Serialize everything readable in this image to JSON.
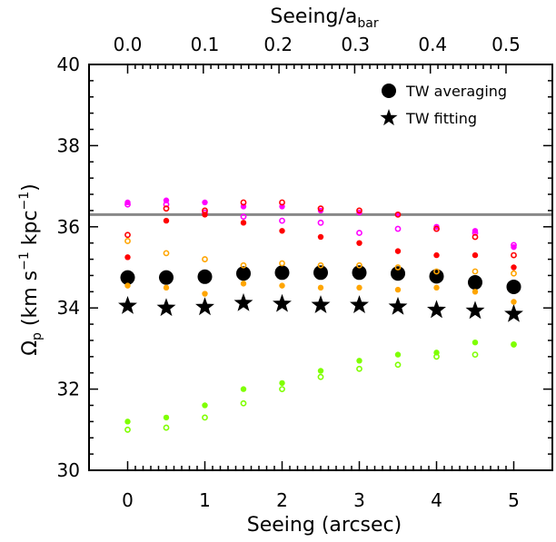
{
  "chart_data": {
    "type": "scatter",
    "xlabel": "Seeing (arcsec)",
    "ylabel": {
      "main": "Ω",
      "sub": "p",
      "rest1": " (km s",
      "sup1": "−1",
      "rest2": " kpc",
      "sup2": "−1",
      "rest3": ")"
    },
    "top_xlabel": {
      "main": "Seeing/a",
      "sub": "bar"
    },
    "xlim": [
      -0.5,
      5.5
    ],
    "ylim": [
      30,
      40
    ],
    "x_ticks": [
      "0",
      "1",
      "2",
      "3",
      "4",
      "5"
    ],
    "y_ticks": [
      "30",
      "32",
      "34",
      "36",
      "38",
      "40"
    ],
    "top_ticks": [
      "0.0",
      "0.1",
      "0.2",
      "0.3",
      "0.4",
      "0.5"
    ],
    "top_tick_positions_arcsec": [
      0,
      1.0,
      1.95,
      2.95,
      3.95,
      4.9
    ],
    "reference_line": {
      "y": 36.3,
      "color": "#888888"
    },
    "legend": {
      "placement": "top-right",
      "entries": [
        {
          "label": "TW averaging",
          "marker": "circle"
        },
        {
          "label": "TW fitting",
          "marker": "star"
        }
      ]
    },
    "x": [
      0,
      0.5,
      1,
      1.5,
      2,
      2.5,
      3,
      3.5,
      4,
      4.5,
      5
    ],
    "series": [
      {
        "marker": "big-circle",
        "color": "#000000",
        "values": [
          34.75,
          34.75,
          34.77,
          34.85,
          34.87,
          34.87,
          34.87,
          34.85,
          34.78,
          34.63,
          34.52
        ]
      },
      {
        "marker": "star",
        "color": "#000000",
        "values": [
          34.05,
          34.0,
          34.02,
          34.12,
          34.1,
          34.07,
          34.07,
          34.03,
          33.95,
          33.93,
          33.85
        ]
      },
      {
        "marker": "dot",
        "color": "#ff00ff",
        "values": [
          36.6,
          36.65,
          36.6,
          36.5,
          36.5,
          36.4,
          36.35,
          36.3,
          36.0,
          35.9,
          35.5
        ]
      },
      {
        "marker": "ring",
        "color": "#ff00ff",
        "values": [
          36.55,
          36.55,
          36.35,
          36.25,
          36.15,
          36.1,
          35.85,
          35.95,
          35.95,
          35.85,
          35.55
        ]
      },
      {
        "marker": "ring",
        "color": "#ff0000",
        "values": [
          35.8,
          36.45,
          36.4,
          36.6,
          36.6,
          36.45,
          36.4,
          36.3,
          35.95,
          35.75,
          35.3
        ]
      },
      {
        "marker": "dot",
        "color": "#ff0000",
        "values": [
          35.25,
          36.15,
          36.3,
          36.1,
          35.9,
          35.75,
          35.6,
          35.4,
          35.3,
          35.3,
          35.0
        ]
      },
      {
        "marker": "ring",
        "color": "#ffa500",
        "values": [
          35.65,
          35.35,
          35.2,
          35.05,
          35.1,
          35.05,
          35.05,
          35.0,
          34.9,
          34.9,
          34.85
        ]
      },
      {
        "marker": "dot",
        "color": "#ffa500",
        "values": [
          34.55,
          34.5,
          34.35,
          34.6,
          34.55,
          34.5,
          34.5,
          34.45,
          34.5,
          34.4,
          34.15
        ]
      },
      {
        "marker": "dot",
        "color": "#7fff00",
        "values": [
          31.2,
          31.3,
          31.6,
          32.0,
          32.15,
          32.45,
          32.7,
          32.85,
          32.9,
          33.15,
          33.1
        ]
      },
      {
        "marker": "ring",
        "color": "#7fff00",
        "values": [
          31.0,
          31.05,
          31.3,
          31.65,
          32.0,
          32.3,
          32.5,
          32.6,
          32.8,
          32.85,
          33.1
        ]
      }
    ]
  }
}
